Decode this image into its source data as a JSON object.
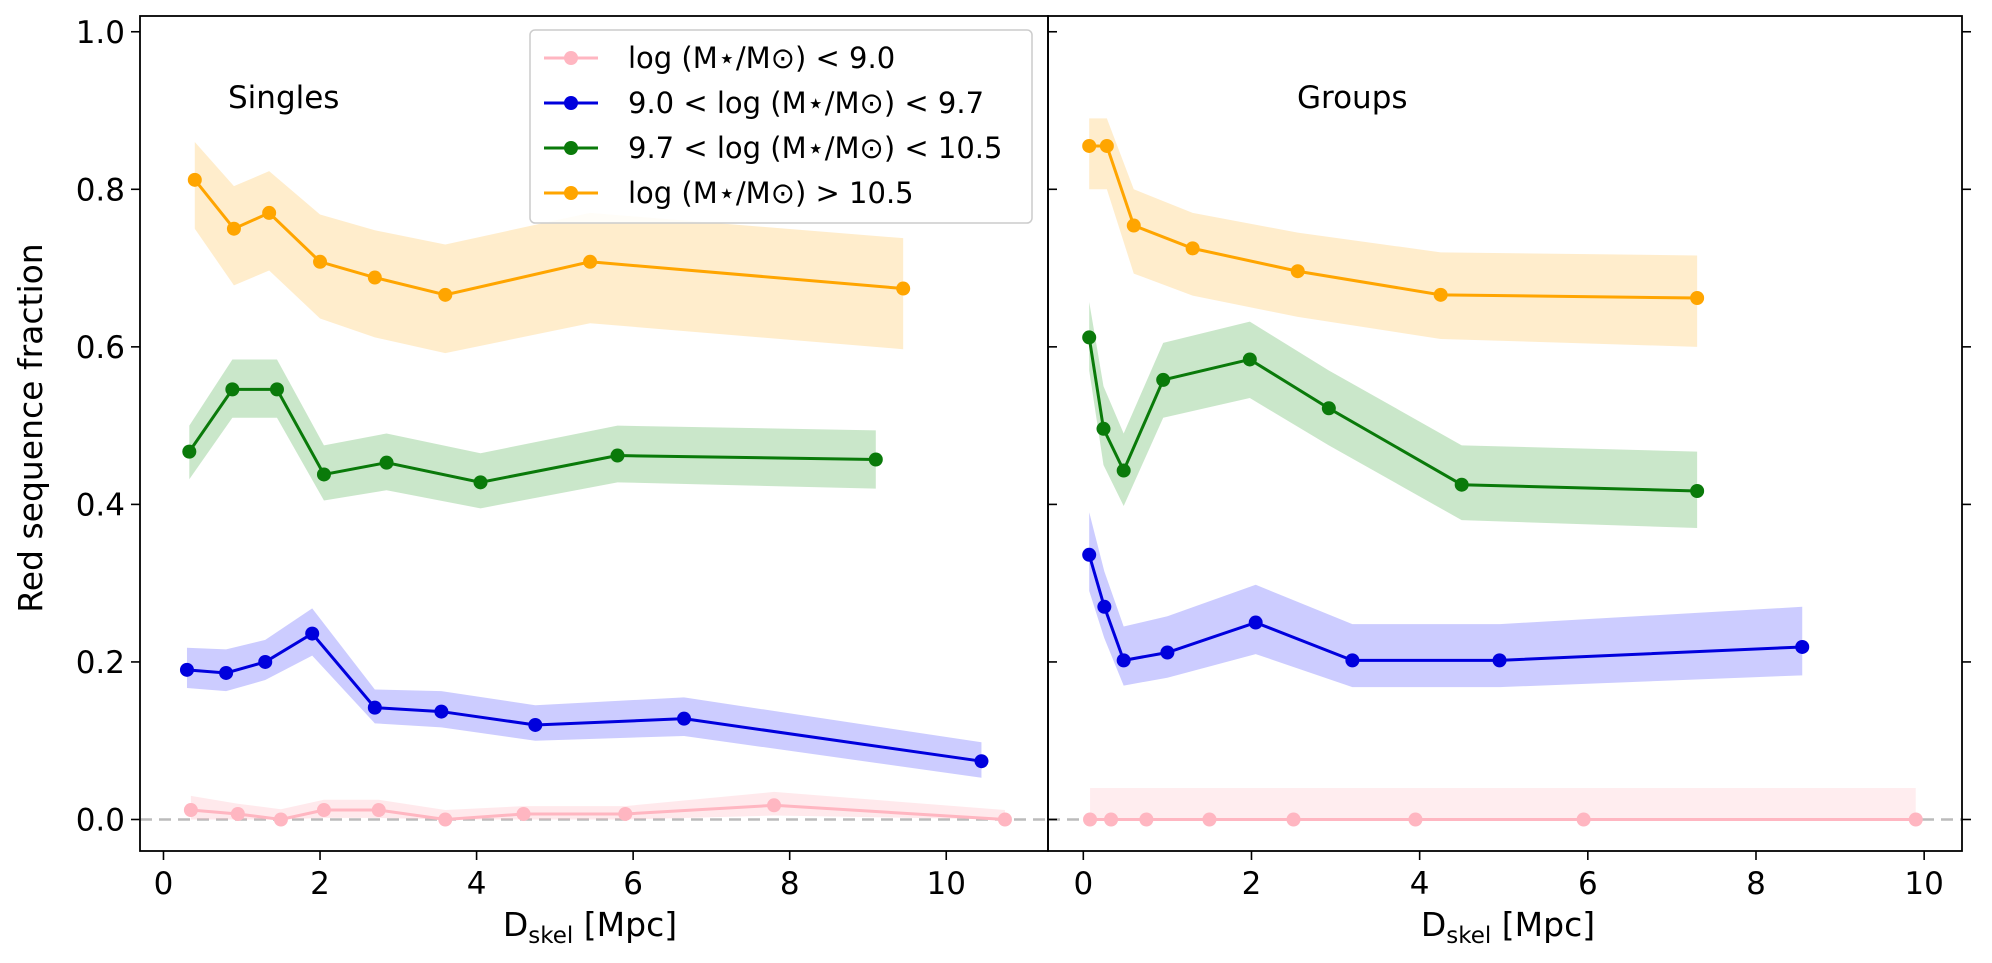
{
  "chart_data": {
    "type": "line",
    "ylabel": "Red sequence fraction",
    "ylim": [
      -0.04,
      1.02
    ],
    "yticks": [
      "0.0",
      "0.2",
      "0.4",
      "0.6",
      "0.8",
      "1.0"
    ],
    "ytick_values": [
      0.0,
      0.2,
      0.4,
      0.6,
      0.8,
      1.0
    ],
    "reference_line": {
      "y": 0.0,
      "style": "dashed",
      "color": "#bbbbbb"
    },
    "legend": {
      "placement": "top-center",
      "entries": [
        {
          "label": "log (M⋆/M⊙) < 9.0",
          "color": "#ffb6c1"
        },
        {
          "label": "9.0 < log (M⋆/M⊙) < 9.7",
          "color": "#0000dd"
        },
        {
          "label": " 9.7 < log (M⋆/M⊙) < 10.5",
          "color": "#0a7a0a"
        },
        {
          "label": "log (M⋆/M⊙) > 10.5",
          "color": "#ffa500"
        }
      ]
    },
    "panels": [
      {
        "label": "Singles",
        "xlabel_main": "D",
        "xlabel_sub": "skel",
        "xlabel_unit": " [Mpc]",
        "xlim": [
          -0.3,
          11.3
        ],
        "xticks": [
          "0",
          "2",
          "4",
          "6",
          "8",
          "10"
        ],
        "xtick_values": [
          0,
          2,
          4,
          6,
          8,
          10
        ],
        "series": [
          {
            "color": "#ffb6c1",
            "fill": "#ffb6c1",
            "fill_opacity": 0.3,
            "x": [
              0.35,
              0.95,
              1.5,
              2.05,
              2.75,
              3.6,
              4.6,
              5.9,
              7.8,
              10.75
            ],
            "y": [
              0.012,
              0.007,
              0.0,
              0.012,
              0.012,
              0.0,
              0.007,
              0.007,
              0.018,
              0.0
            ],
            "lo": [
              0.0,
              0.0,
              0.0,
              0.002,
              0.002,
              0.0,
              0.0,
              0.0,
              0.005,
              0.0
            ],
            "hi": [
              0.03,
              0.02,
              0.013,
              0.025,
              0.025,
              0.012,
              0.017,
              0.017,
              0.035,
              0.012
            ]
          },
          {
            "color": "#0000dd",
            "fill": "#0000ff",
            "fill_opacity": 0.2,
            "x": [
              0.3,
              0.8,
              1.3,
              1.9,
              2.7,
              3.55,
              4.75,
              6.65,
              10.45
            ],
            "y": [
              0.19,
              0.186,
              0.2,
              0.236,
              0.142,
              0.137,
              0.12,
              0.128,
              0.074
            ],
            "lo": [
              0.167,
              0.163,
              0.177,
              0.208,
              0.122,
              0.117,
              0.1,
              0.106,
              0.053
            ],
            "hi": [
              0.218,
              0.216,
              0.228,
              0.268,
              0.165,
              0.163,
              0.145,
              0.155,
              0.098
            ]
          },
          {
            "color": "#0a7a0a",
            "fill": "#2ca02c",
            "fill_opacity": 0.25,
            "x": [
              0.33,
              0.88,
              1.45,
              2.05,
              2.85,
              4.05,
              5.8,
              9.1
            ],
            "y": [
              0.467,
              0.546,
              0.546,
              0.438,
              0.453,
              0.428,
              0.462,
              0.457
            ],
            "lo": [
              0.432,
              0.51,
              0.51,
              0.405,
              0.418,
              0.395,
              0.428,
              0.42
            ],
            "hi": [
              0.5,
              0.584,
              0.584,
              0.475,
              0.49,
              0.465,
              0.5,
              0.494
            ]
          },
          {
            "color": "#ffa500",
            "fill": "#ffa500",
            "fill_opacity": 0.2,
            "x": [
              0.4,
              0.9,
              1.35,
              2.0,
              2.7,
              3.6,
              5.45,
              9.45
            ],
            "y": [
              0.812,
              0.75,
              0.77,
              0.708,
              0.688,
              0.666,
              0.708,
              0.674
            ],
            "lo": [
              0.75,
              0.678,
              0.697,
              0.636,
              0.612,
              0.592,
              0.63,
              0.597
            ],
            "hi": [
              0.86,
              0.804,
              0.823,
              0.768,
              0.748,
              0.73,
              0.77,
              0.738
            ]
          }
        ]
      },
      {
        "label": "Groups",
        "xlabel_main": "D",
        "xlabel_sub": "skel",
        "xlabel_unit": " [Mpc]",
        "xlim": [
          -0.42,
          10.45
        ],
        "xticks": [
          "0",
          "2",
          "4",
          "6",
          "8",
          "10"
        ],
        "xtick_values": [
          0,
          2,
          4,
          6,
          8,
          10
        ],
        "series": [
          {
            "color": "#ffb6c1",
            "fill": "#ffb6c1",
            "fill_opacity": 0.25,
            "x": [
              0.08,
              0.33,
              0.75,
              1.5,
              2.5,
              3.95,
              5.95,
              9.9
            ],
            "y": [
              0.0,
              0.0,
              0.0,
              0.0,
              0.0,
              0.0,
              0.0,
              0.0
            ],
            "lo": [
              0.0,
              0.0,
              0.0,
              0.0,
              0.0,
              0.0,
              0.0,
              0.0
            ],
            "hi": [
              0.04,
              0.04,
              0.04,
              0.04,
              0.04,
              0.04,
              0.04,
              0.04
            ]
          },
          {
            "color": "#0000dd",
            "fill": "#0000ff",
            "fill_opacity": 0.2,
            "x": [
              0.07,
              0.25,
              0.48,
              1.0,
              2.05,
              3.2,
              4.95,
              8.55
            ],
            "y": [
              0.336,
              0.27,
              0.202,
              0.212,
              0.25,
              0.202,
              0.202,
              0.219
            ],
            "lo": [
              0.29,
              0.23,
              0.17,
              0.18,
              0.21,
              0.168,
              0.168,
              0.183
            ],
            "hi": [
              0.39,
              0.315,
              0.245,
              0.258,
              0.298,
              0.248,
              0.248,
              0.27
            ]
          },
          {
            "color": "#0a7a0a",
            "fill": "#2ca02c",
            "fill_opacity": 0.25,
            "x": [
              0.07,
              0.24,
              0.48,
              0.95,
              1.98,
              2.92,
              4.5,
              7.3
            ],
            "y": [
              0.612,
              0.496,
              0.443,
              0.558,
              0.584,
              0.522,
              0.425,
              0.417
            ],
            "lo": [
              0.57,
              0.45,
              0.398,
              0.51,
              0.535,
              0.475,
              0.38,
              0.37
            ],
            "hi": [
              0.657,
              0.55,
              0.49,
              0.605,
              0.632,
              0.57,
              0.475,
              0.467
            ]
          },
          {
            "color": "#ffa500",
            "fill": "#ffa500",
            "fill_opacity": 0.2,
            "x": [
              0.07,
              0.28,
              0.6,
              1.3,
              2.55,
              4.25,
              7.3
            ],
            "y": [
              0.855,
              0.855,
              0.754,
              0.725,
              0.696,
              0.666,
              0.662
            ],
            "lo": [
              0.8,
              0.8,
              0.693,
              0.665,
              0.638,
              0.61,
              0.6
            ],
            "hi": [
              0.89,
              0.89,
              0.8,
              0.77,
              0.745,
              0.72,
              0.716
            ]
          }
        ]
      }
    ]
  }
}
